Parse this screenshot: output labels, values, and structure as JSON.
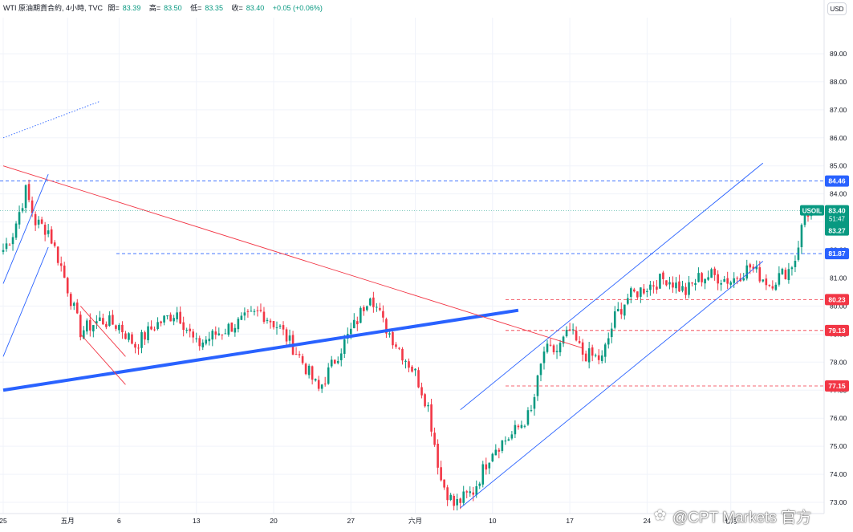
{
  "header": {
    "symbol": "WTI 原油期貨合約, 4小時, TVC",
    "open_label": "開=",
    "open": "83.39",
    "high_label": "高=",
    "high": "83.50",
    "low_label": "低=",
    "low": "83.35",
    "close_label": "收=",
    "close": "83.40",
    "change": "+0.05 (+0.06%)"
  },
  "currency_button": "USD",
  "watermark": "@CPT Markets 官方",
  "colors": {
    "up": "#089981",
    "down": "#f23645",
    "blue_line": "#2962ff",
    "channel": "#2962ff",
    "resistance": "#2962ff",
    "support": "#f23645"
  },
  "chart_data": {
    "type": "candlestick",
    "instrument": "USOIL",
    "interval": "4h",
    "ylim": [
      72.6,
      90.0
    ],
    "y_ticks": [
      "73.00",
      "74.00",
      "75.00",
      "76.00",
      "77.00",
      "78.00",
      "79.00",
      "80.00",
      "81.00",
      "82.00",
      "83.00",
      "84.00",
      "85.00",
      "86.00",
      "87.00",
      "88.00",
      "89.00"
    ],
    "x_ticks": [
      "25",
      "五月",
      "6",
      "13",
      "20",
      "27",
      "六月",
      "10",
      "17",
      "24",
      "七月"
    ],
    "last_price": "83.40",
    "last_price_label": "USOIL",
    "countdown": "51:47",
    "extra_price_tag": "83.27",
    "horizontal_levels": [
      {
        "value": 84.46,
        "label": "84.46",
        "color": "blue"
      },
      {
        "value": 81.87,
        "label": "81.87",
        "color": "blue"
      },
      {
        "value": 80.23,
        "label": "80.23",
        "color": "red"
      },
      {
        "value": 79.13,
        "label": "79.13",
        "color": "red"
      },
      {
        "value": 77.15,
        "label": "77.15",
        "color": "red"
      }
    ],
    "anchors": [
      {
        "t": 0,
        "p": 82.0
      },
      {
        "t": 3,
        "p": 82.6
      },
      {
        "t": 7,
        "p": 84.1
      },
      {
        "t": 10,
        "p": 83.0
      },
      {
        "t": 14,
        "p": 82.7
      },
      {
        "t": 18,
        "p": 81.4
      },
      {
        "t": 24,
        "p": 79.1
      },
      {
        "t": 30,
        "p": 79.5
      },
      {
        "t": 36,
        "p": 79.3
      },
      {
        "t": 41,
        "p": 78.6
      },
      {
        "t": 47,
        "p": 79.3
      },
      {
        "t": 54,
        "p": 79.8
      },
      {
        "t": 60,
        "p": 78.6
      },
      {
        "t": 66,
        "p": 79.0
      },
      {
        "t": 73,
        "p": 79.4
      },
      {
        "t": 80,
        "p": 79.8
      },
      {
        "t": 86,
        "p": 79.2
      },
      {
        "t": 92,
        "p": 78.2
      },
      {
        "t": 98,
        "p": 77.0
      },
      {
        "t": 104,
        "p": 78.3
      },
      {
        "t": 110,
        "p": 79.5
      },
      {
        "t": 114,
        "p": 80.5
      },
      {
        "t": 118,
        "p": 79.4
      },
      {
        "t": 124,
        "p": 78.3
      },
      {
        "t": 128,
        "p": 77.6
      },
      {
        "t": 132,
        "p": 76.4
      },
      {
        "t": 136,
        "p": 73.8
      },
      {
        "t": 140,
        "p": 72.9
      },
      {
        "t": 146,
        "p": 73.4
      },
      {
        "t": 152,
        "p": 74.9
      },
      {
        "t": 158,
        "p": 75.4
      },
      {
        "t": 164,
        "p": 76.2
      },
      {
        "t": 168,
        "p": 78.4
      },
      {
        "t": 172,
        "p": 78.4
      },
      {
        "t": 176,
        "p": 79.1
      },
      {
        "t": 180,
        "p": 78.3
      },
      {
        "t": 186,
        "p": 78.1
      },
      {
        "t": 190,
        "p": 79.6
      },
      {
        "t": 194,
        "p": 80.3
      },
      {
        "t": 200,
        "p": 80.7
      },
      {
        "t": 206,
        "p": 81.0
      },
      {
        "t": 212,
        "p": 80.5
      },
      {
        "t": 216,
        "p": 81.0
      },
      {
        "t": 220,
        "p": 81.1
      },
      {
        "t": 226,
        "p": 80.9
      },
      {
        "t": 232,
        "p": 81.4
      },
      {
        "t": 238,
        "p": 80.8
      },
      {
        "t": 244,
        "p": 81.3
      },
      {
        "t": 246,
        "p": 81.7
      },
      {
        "t": 249,
        "p": 83.3
      },
      {
        "t": 252,
        "p": 83.4
      }
    ],
    "drawings": [
      {
        "type": "trendline",
        "color": "blue-thick",
        "from": [
          0,
          77.0
        ],
        "to": [
          160,
          79.85
        ]
      },
      {
        "type": "trendline",
        "color": "red",
        "from": [
          0,
          85.0
        ],
        "to": [
          180,
          78.5
        ]
      },
      {
        "type": "channel",
        "color": "blue",
        "from": [
          0,
          80.8
        ],
        "to": [
          14,
          84.7
        ],
        "offset": -2.6
      },
      {
        "type": "channel",
        "color": "blue",
        "from": [
          142,
          72.8
        ],
        "to": [
          236,
          81.6
        ],
        "offset": 3.5
      },
      {
        "type": "channel",
        "color": "red",
        "from": [
          24,
          79.0
        ],
        "to": [
          38,
          77.2
        ],
        "offset": 1.0
      },
      {
        "type": "ray",
        "color": "blue-dotted",
        "from": [
          0,
          86.0
        ],
        "to": [
          30,
          87.3
        ]
      }
    ]
  }
}
